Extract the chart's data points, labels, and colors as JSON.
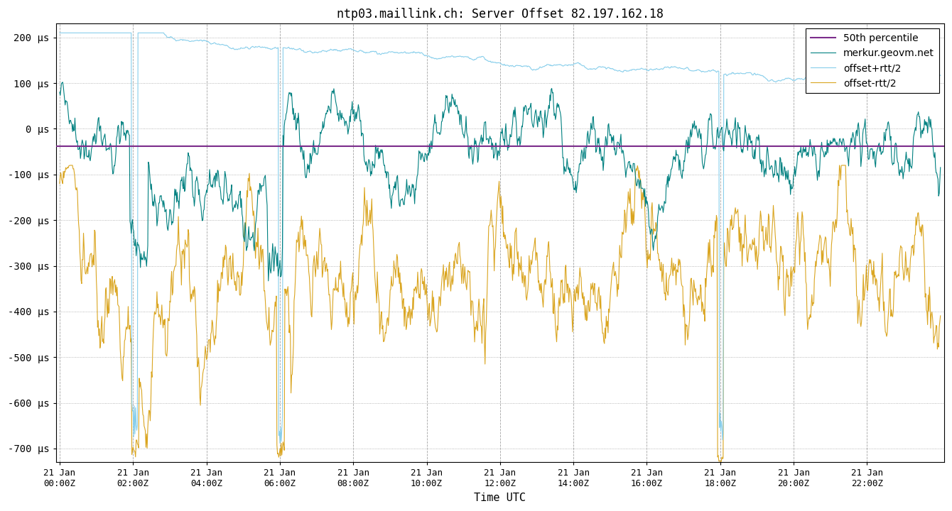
{
  "title": "ntp03.maillink.ch: Server Offset 82.197.162.18",
  "xlabel": "Time UTC",
  "ytick_values": [
    200,
    100,
    0,
    -100,
    -200,
    -300,
    -400,
    -500,
    -600,
    -700
  ],
  "ylim": [
    -730,
    230
  ],
  "xtick_labels": [
    "21 Jan\n00:00Z",
    "21 Jan\n02:00Z",
    "21 Jan\n04:00Z",
    "21 Jan\n06:00Z",
    "21 Jan\n08:00Z",
    "21 Jan\n10:00Z",
    "21 Jan\n12:00Z",
    "21 Jan\n14:00Z",
    "21 Jan\n16:00Z",
    "21 Jan\n18:00Z",
    "21 Jan\n20:00Z",
    "21 Jan\n22:00Z"
  ],
  "legend_labels": [
    "50th percentile",
    "merkur.geovm.net",
    "offset+rtt/2",
    "offset-rtt/2"
  ],
  "colors": {
    "percentile": "#7b2d8b",
    "merkur": "#008080",
    "offset_plus": "#87ceeb",
    "offset_minus": "#daa520"
  },
  "percentile_value": -38,
  "background": "#ffffff",
  "grid_color": "#999999",
  "n_points": 1440,
  "seed": 42
}
